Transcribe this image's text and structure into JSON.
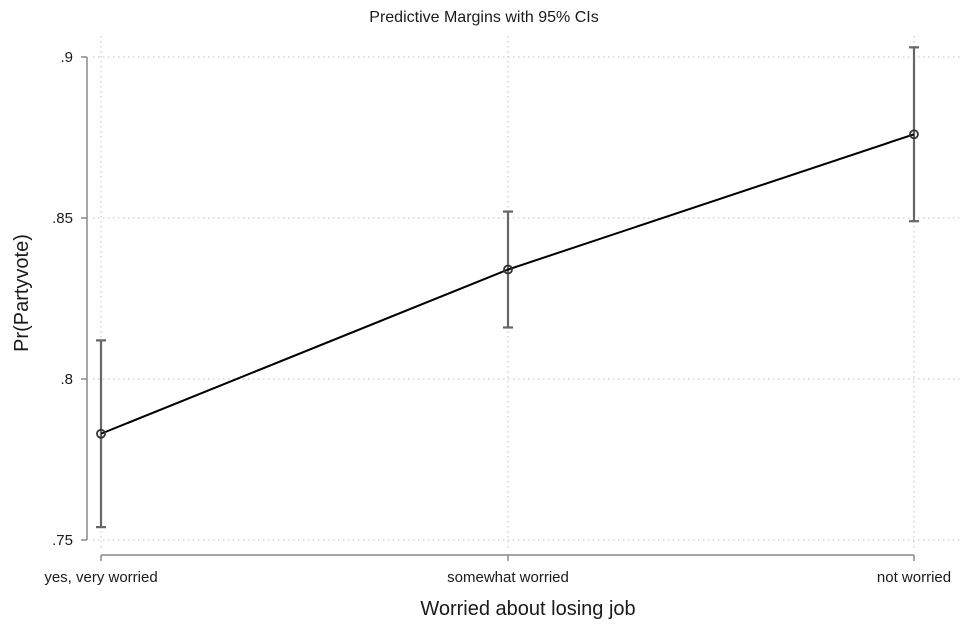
{
  "chart_data": {
    "type": "line",
    "title": "Predictive Margins with 95% CIs",
    "xlabel": "Worried about losing job",
    "ylabel": "Pr(Partyvote)",
    "categories": [
      "yes, very worried",
      "somewhat worried",
      "not worried"
    ],
    "series": [
      {
        "values": [
          0.783,
          0.834,
          0.876
        ],
        "ci_lower": [
          0.754,
          0.816,
          0.849
        ],
        "ci_upper": [
          0.812,
          0.852,
          0.903
        ]
      }
    ],
    "ylim": [
      0.75,
      0.9
    ],
    "yticks": [
      0.75,
      0.8,
      0.85,
      0.9
    ],
    "ytick_labels": [
      ".75",
      ".8",
      ".85",
      ".9"
    ],
    "grid": true,
    "colors": {
      "line": "#000000",
      "marker": "#333333",
      "errorbar": "#666666",
      "grid": "#cccccc",
      "axis": "#888888"
    }
  }
}
